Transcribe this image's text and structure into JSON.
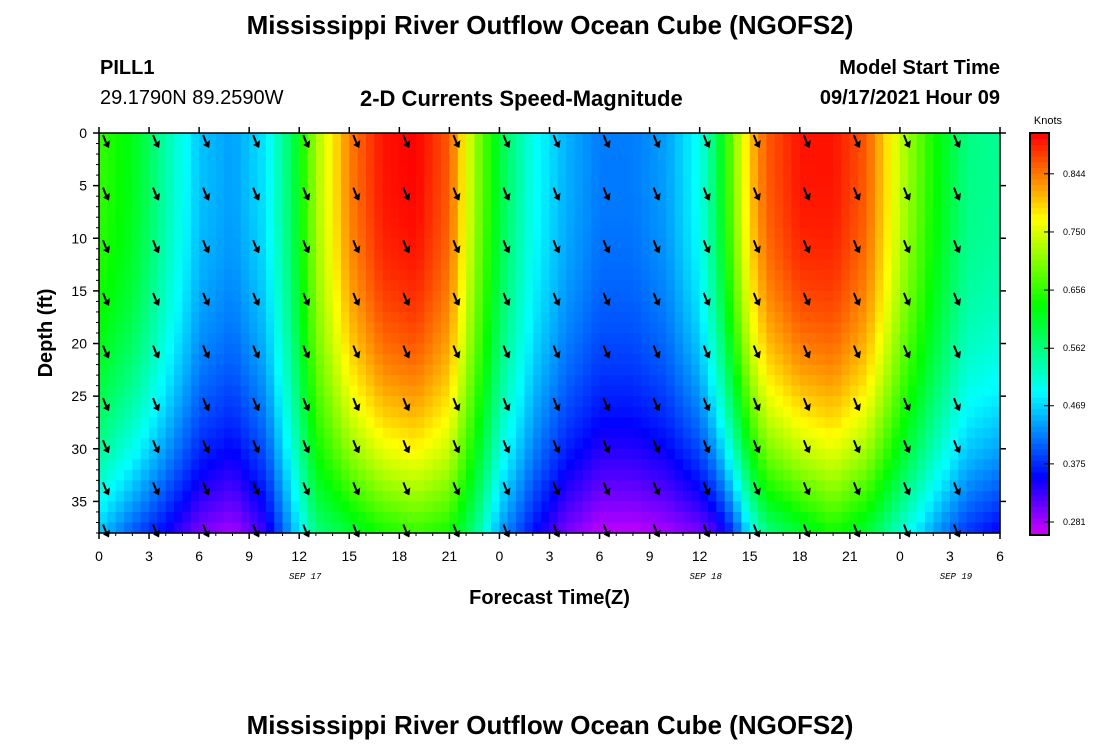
{
  "header": {
    "title": "Mississippi River Outflow Ocean Cube (NGOFS2)",
    "station_name": "PILL1",
    "coordinates": "29.1790N  89.2590W",
    "subtitle": "2-D Currents Speed-Magnitude",
    "model_start_label": "Model Start Time",
    "model_start_value": "09/17/2021 Hour 09"
  },
  "footer": {
    "title": "Mississippi River Outflow Ocean Cube (NGOFS2)"
  },
  "chart_data": {
    "type": "heatmap",
    "xlabel": "Forecast Time(Z)",
    "ylabel": "Depth (ft)",
    "x_hours": [
      0,
      3,
      6,
      9,
      12,
      15,
      18,
      21,
      24,
      27,
      30,
      33,
      36,
      39,
      42,
      45,
      48,
      51,
      54
    ],
    "x_tick_labels": [
      "0",
      "3",
      "6",
      "9",
      "12",
      "15",
      "18",
      "21",
      "0",
      "3",
      "6",
      "9",
      "12",
      "15",
      "18",
      "21",
      "0",
      "3",
      "6"
    ],
    "date_labels": [
      {
        "label": "SEP 17",
        "hour": 12
      },
      {
        "label": "SEP 18",
        "hour": 36
      },
      {
        "label": "SEP 19",
        "hour": 51
      }
    ],
    "y_ticks": [
      0,
      5,
      10,
      15,
      20,
      25,
      30,
      35
    ],
    "ylim": [
      0,
      38
    ],
    "colorbar": {
      "unit": "Knots",
      "min": 0.26,
      "max": 0.91,
      "tick_values": [
        0.844,
        0.75,
        0.656,
        0.562,
        0.469,
        0.375,
        0.281
      ],
      "tick_labels": [
        "0.844",
        "0.750",
        "0.656",
        "0.562",
        "0.469",
        "0.375",
        "0.281"
      ]
    },
    "speed_profile": {
      "description_hours": [
        0,
        2,
        4,
        6,
        8,
        10,
        11.5,
        13,
        15,
        17,
        19,
        21,
        22.5,
        24,
        26,
        28,
        30,
        32,
        34,
        36,
        37,
        38,
        39,
        40,
        42,
        44,
        46,
        48,
        50,
        52,
        54
      ],
      "surface_knots": [
        0.66,
        0.62,
        0.54,
        0.46,
        0.44,
        0.48,
        0.58,
        0.72,
        0.84,
        0.9,
        0.91,
        0.86,
        0.72,
        0.6,
        0.5,
        0.45,
        0.42,
        0.42,
        0.44,
        0.5,
        0.58,
        0.7,
        0.8,
        0.86,
        0.9,
        0.9,
        0.86,
        0.74,
        0.64,
        0.56,
        0.55
      ],
      "bottom_knots": [
        0.46,
        0.4,
        0.35,
        0.3,
        0.28,
        0.33,
        0.44,
        0.56,
        0.6,
        0.64,
        0.66,
        0.64,
        0.56,
        0.44,
        0.36,
        0.3,
        0.27,
        0.27,
        0.28,
        0.3,
        0.32,
        0.38,
        0.48,
        0.56,
        0.6,
        0.64,
        0.6,
        0.52,
        0.44,
        0.38,
        0.35
      ]
    },
    "vector_rows_ft": [
      0,
      5,
      10,
      15,
      20,
      25,
      29,
      33,
      37
    ],
    "vector_direction": "south-southeast",
    "grid": true
  }
}
